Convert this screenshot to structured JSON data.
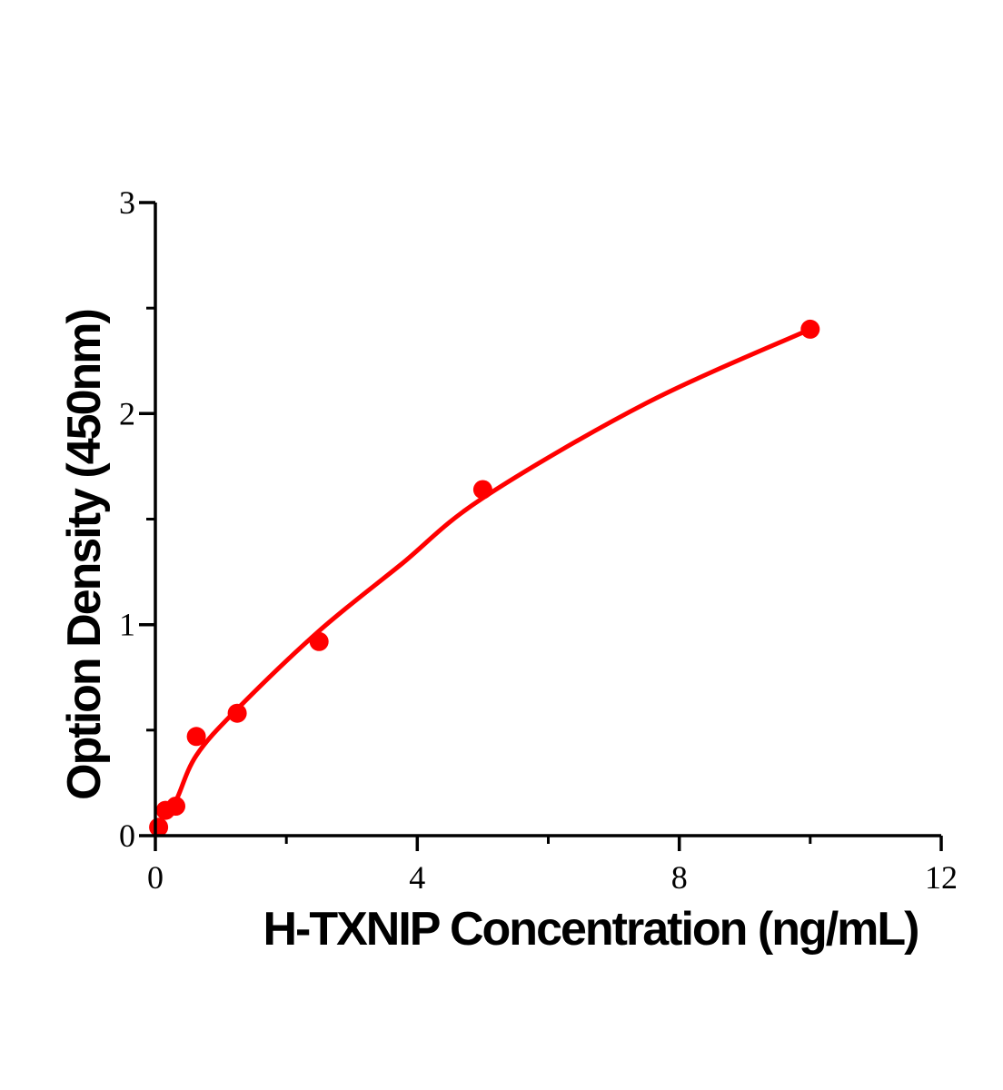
{
  "chart_data": {
    "type": "scatter",
    "title": "",
    "xlabel": "H-TXNIP Concentration (ng/mL)",
    "ylabel": "Option Density (450nm)",
    "xlim": [
      0,
      12
    ],
    "ylim": [
      0,
      3
    ],
    "x_major_ticks": [
      0,
      4,
      8,
      12
    ],
    "x_minor_ticks": [
      2,
      6,
      10
    ],
    "y_major_ticks": [
      0,
      1,
      2,
      3
    ],
    "y_minor_ticks": [
      0.5,
      1.5,
      2.5
    ],
    "grid": "off",
    "legend": "none",
    "points": [
      {
        "x": 0.05,
        "y": 0.04
      },
      {
        "x": 0.156,
        "y": 0.12
      },
      {
        "x": 0.3125,
        "y": 0.14
      },
      {
        "x": 0.625,
        "y": 0.47
      },
      {
        "x": 1.25,
        "y": 0.58
      },
      {
        "x": 2.5,
        "y": 0.92
      },
      {
        "x": 5,
        "y": 1.64
      },
      {
        "x": 10,
        "y": 2.4
      }
    ],
    "fit_curve": [
      [
        0.02,
        0.03
      ],
      [
        0.16,
        0.115
      ],
      [
        0.32,
        0.17
      ],
      [
        0.625,
        0.38
      ],
      [
        1.25,
        0.6
      ],
      [
        2.5,
        0.97
      ],
      [
        3.75,
        1.285
      ],
      [
        5,
        1.6
      ],
      [
        7.5,
        2.05
      ],
      [
        10,
        2.4
      ]
    ],
    "point_color": "#ff0000",
    "curve_color": "#ff0000",
    "axis_color": "#000000",
    "background_color": "#ffffff"
  }
}
